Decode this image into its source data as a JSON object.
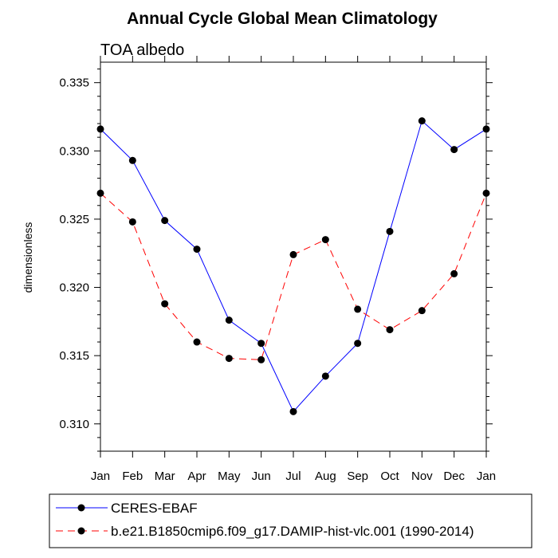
{
  "chart_data": {
    "type": "line",
    "title": "Annual Cycle Global Mean Climatology",
    "subtitle": "TOA albedo",
    "xlabel": "",
    "ylabel": "dimensionless",
    "categories": [
      "Jan",
      "Feb",
      "Mar",
      "Apr",
      "May",
      "Jun",
      "Jul",
      "Aug",
      "Sep",
      "Oct",
      "Nov",
      "Dec",
      "Jan"
    ],
    "ylim": [
      0.308,
      0.3365
    ],
    "yticks": [
      0.31,
      0.315,
      0.32,
      0.325,
      0.33,
      0.335
    ],
    "ytick_labels": [
      "0.310",
      "0.315",
      "0.320",
      "0.325",
      "0.330",
      "0.335"
    ],
    "series": [
      {
        "name": "CERES-EBAF",
        "color": "#0000ff",
        "dash": "solid",
        "values": [
          0.3316,
          0.3293,
          0.3249,
          0.3228,
          0.3176,
          0.3159,
          0.3109,
          0.3135,
          0.3159,
          0.3241,
          0.3322,
          0.3301,
          0.3316
        ]
      },
      {
        "name": "b.e21.B1850cmip6.f09_g17.DAMIP-hist-vlc.001 (1990-2014)",
        "color": "#ff0000",
        "dash": "dashed",
        "values": [
          0.3269,
          0.3248,
          0.3188,
          0.316,
          0.3148,
          0.3147,
          0.3224,
          0.3235,
          0.3184,
          0.3169,
          0.3183,
          0.321,
          0.3269
        ]
      }
    ],
    "grid": false,
    "legend_position": "bottom"
  }
}
